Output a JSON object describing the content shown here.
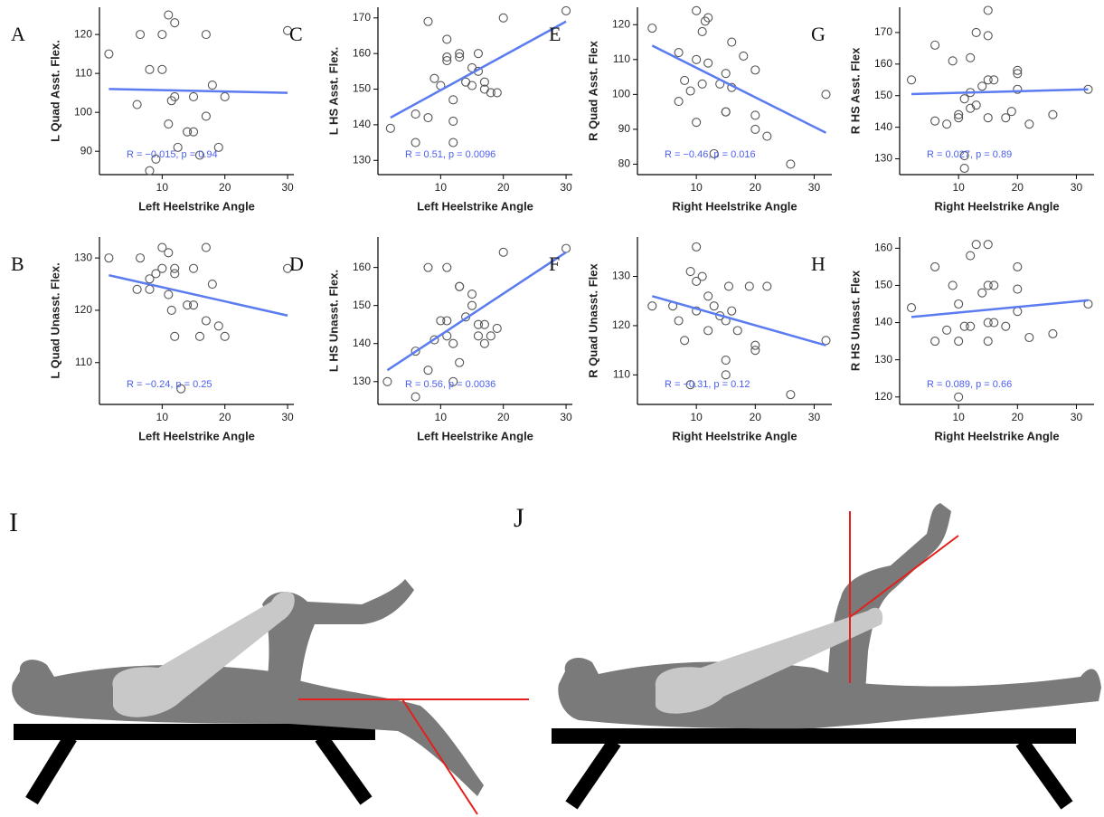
{
  "chart_data": [
    {
      "type": "scatter",
      "panel": "A",
      "y_label": "L Quad Asst. Flex.",
      "x_label": "Left Heelstrike Angle",
      "annotation": "R = −0.015, p = 0.94",
      "marker_color": "#555555",
      "x": [
        1.5,
        6,
        6.5,
        8,
        8,
        9,
        10,
        10,
        11,
        11,
        11.5,
        12,
        12,
        12.5,
        14,
        15,
        15,
        16,
        17,
        17,
        18,
        19,
        20,
        30
      ],
      "values": [
        115,
        102,
        120,
        111,
        85,
        88,
        120,
        111,
        125,
        97,
        103,
        104,
        123,
        91,
        95,
        95,
        104,
        89,
        120,
        99,
        107,
        91,
        104,
        121
      ],
      "fit": {
        "color": "#5b7cf0",
        "x": [
          1.5,
          30
        ],
        "y": [
          106,
          105
        ]
      },
      "xlim": [
        0,
        31
      ],
      "ylim": [
        84,
        127
      ],
      "xticks": [
        10,
        20,
        30
      ],
      "yticks": [
        90,
        100,
        110,
        120
      ]
    },
    {
      "type": "scatter",
      "panel": "B",
      "y_label": "L Quad Unasst. Flex.",
      "x_label": "Left Heelstrike Angle",
      "annotation": "R = −0.24, p = 0.25",
      "marker_color": "#555555",
      "x": [
        1.5,
        6,
        6.5,
        8,
        8,
        9,
        10,
        10,
        11,
        11,
        11.5,
        12,
        12,
        12,
        13,
        14,
        15,
        15,
        16,
        17,
        17,
        18,
        19,
        20,
        30
      ],
      "values": [
        130,
        124,
        130,
        124,
        126,
        127,
        128,
        132,
        131,
        123,
        120,
        115,
        128,
        127,
        105,
        121,
        121,
        128,
        115,
        132,
        118,
        125,
        117,
        115,
        128
      ],
      "fit": {
        "color": "#5b7cf0",
        "x": [
          1.5,
          30
        ],
        "y": [
          126.7,
          119
        ]
      },
      "xlim": [
        0,
        31
      ],
      "ylim": [
        102,
        134
      ],
      "xticks": [
        10,
        20,
        30
      ],
      "yticks": [
        110,
        120,
        130
      ]
    },
    {
      "type": "scatter",
      "panel": "C",
      "y_label": "L HS Asst. Flex.",
      "x_label": "Left Heelstrike Angle",
      "annotation": "R = 0.51, p = 0.0096",
      "marker_color": "#555555",
      "x": [
        2,
        6,
        6,
        8,
        8,
        9,
        10,
        11,
        11,
        11,
        12,
        12,
        12,
        13,
        13,
        14,
        15,
        15,
        16,
        16,
        17,
        17,
        18,
        19,
        20,
        30
      ],
      "values": [
        139,
        135,
        143,
        142,
        169,
        153,
        151,
        164,
        159,
        158,
        147,
        141,
        135,
        160,
        159,
        152,
        151,
        156,
        160,
        155,
        150,
        152,
        149,
        149,
        170,
        172
      ],
      "fit": {
        "color": "#5b7cf0",
        "x": [
          2,
          30
        ],
        "y": [
          142,
          169
        ]
      },
      "xlim": [
        0,
        31
      ],
      "ylim": [
        126,
        173
      ],
      "xticks": [
        10,
        20,
        30
      ],
      "yticks": [
        130,
        140,
        150,
        160,
        170
      ]
    },
    {
      "type": "scatter",
      "panel": "D",
      "y_label": "L HS Unasst. Flex.",
      "x_label": "Left Heelstrike Angle",
      "annotation": "R = 0.56, p = 0.0036",
      "marker_color": "#555555",
      "x": [
        1.5,
        6,
        6,
        8,
        8,
        9,
        10,
        11,
        11,
        11,
        12,
        12,
        13,
        13,
        13,
        14,
        15,
        15,
        16,
        16,
        17,
        17,
        18,
        19,
        20,
        30
      ],
      "values": [
        130,
        126,
        138,
        160,
        133,
        141,
        146,
        160,
        142,
        146,
        140,
        130,
        155,
        135,
        155,
        147,
        150,
        153,
        142,
        145,
        140,
        145,
        142,
        144,
        164,
        165
      ],
      "fit": {
        "color": "#5b7cf0",
        "x": [
          1.5,
          30
        ],
        "y": [
          133,
          164
        ]
      },
      "xlim": [
        0,
        31
      ],
      "ylim": [
        124,
        168
      ],
      "xticks": [
        10,
        20,
        30
      ],
      "yticks": [
        130,
        140,
        150,
        160
      ]
    },
    {
      "type": "scatter",
      "panel": "E",
      "y_label": "R Quad Asst. Flex",
      "x_label": "Right Heelstrike Angle",
      "annotation": "R = −0.46, p = 0.016",
      "marker_color": "#555555",
      "x": [
        2.5,
        7,
        7,
        8,
        9,
        10,
        10,
        10,
        11,
        11,
        11.5,
        12,
        12,
        13,
        14,
        15,
        15,
        15,
        16,
        16,
        18,
        20,
        20,
        20,
        22,
        26,
        32
      ],
      "values": [
        119,
        112,
        98,
        104,
        101,
        92,
        124,
        110,
        103,
        118,
        121,
        122,
        109,
        83,
        103,
        106,
        95,
        95,
        115,
        102,
        111,
        107,
        94,
        90,
        88,
        80,
        100
      ],
      "fit": {
        "color": "#5b7cf0",
        "x": [
          2.5,
          32
        ],
        "y": [
          114,
          89
        ]
      },
      "xlim": [
        0,
        33
      ],
      "ylim": [
        77,
        125
      ],
      "xticks": [
        10,
        20,
        30
      ],
      "yticks": [
        80,
        90,
        100,
        110,
        120
      ]
    },
    {
      "type": "scatter",
      "panel": "F",
      "y_label": "R Quad Unasst. Flex",
      "x_label": "Right Heelstrike Angle",
      "annotation": "R = −0.31, p = 0.12",
      "marker_color": "#555555",
      "x": [
        2.5,
        6,
        7,
        8,
        9,
        9,
        10,
        10,
        11,
        12,
        12,
        13,
        14,
        15,
        15,
        15,
        15.5,
        16,
        17,
        19,
        20,
        20,
        22,
        26,
        32,
        10
      ],
      "values": [
        124,
        124,
        121,
        117,
        131,
        108,
        129,
        123,
        130,
        126,
        119,
        124,
        122,
        113,
        121,
        110,
        128,
        123,
        119,
        128,
        115,
        116,
        128,
        106,
        117,
        136
      ],
      "fit": {
        "color": "#5b7cf0",
        "x": [
          2.5,
          32
        ],
        "y": [
          126,
          116
        ]
      },
      "xlim": [
        0,
        33
      ],
      "ylim": [
        104,
        138
      ],
      "xticks": [
        10,
        20,
        30
      ],
      "yticks": [
        110,
        120,
        130
      ]
    },
    {
      "type": "scatter",
      "panel": "G",
      "y_label": "R HS Asst. Flex",
      "x_label": "Right Heelstrike Angle",
      "annotation": "R = 0.027, p = 0.89",
      "marker_color": "#555555",
      "x": [
        2,
        6,
        6,
        8,
        9,
        10,
        10,
        11,
        11,
        11,
        12,
        12,
        12,
        13,
        13,
        14,
        15,
        15,
        15,
        15,
        16,
        18,
        19,
        20,
        20,
        20,
        22,
        26,
        32
      ],
      "values": [
        155,
        166,
        142,
        141,
        161,
        143,
        144,
        131,
        127,
        149,
        151,
        146,
        162,
        170,
        147,
        153,
        177,
        169,
        143,
        155,
        155,
        143,
        145,
        158,
        157,
        152,
        141,
        144,
        152
      ],
      "fit": {
        "color": "#5b7cf0",
        "x": [
          2,
          32
        ],
        "y": [
          150.5,
          152
        ]
      },
      "xlim": [
        0,
        33
      ],
      "ylim": [
        125,
        178
      ],
      "xticks": [
        10,
        20,
        30
      ],
      "yticks": [
        130,
        140,
        150,
        160,
        170
      ]
    },
    {
      "type": "scatter",
      "panel": "H",
      "y_label": "R HS Unasst. Flex",
      "x_label": "Right Heelstrike Angle",
      "annotation": "R = 0.089, p = 0.66",
      "marker_color": "#555555",
      "x": [
        2,
        6,
        6,
        8,
        9,
        10,
        10,
        10,
        11,
        12,
        12,
        13,
        14,
        15,
        15,
        15,
        15,
        16,
        16,
        18,
        20,
        20,
        20,
        22,
        26,
        32
      ],
      "values": [
        144,
        155,
        135,
        138,
        150,
        135,
        145,
        120,
        139,
        158,
        139,
        161,
        148,
        140,
        150,
        161,
        135,
        150,
        140,
        139,
        155,
        143,
        149,
        136,
        137,
        145
      ],
      "fit": {
        "color": "#5b7cf0",
        "x": [
          2,
          32
        ],
        "y": [
          141.5,
          146
        ]
      },
      "xlim": [
        0,
        33
      ],
      "ylim": [
        118,
        163
      ],
      "xticks": [
        10,
        20,
        30
      ],
      "yticks": [
        120,
        130,
        140,
        150,
        160
      ]
    }
  ],
  "illustrations": {
    "labels": [
      "I",
      "J"
    ]
  }
}
